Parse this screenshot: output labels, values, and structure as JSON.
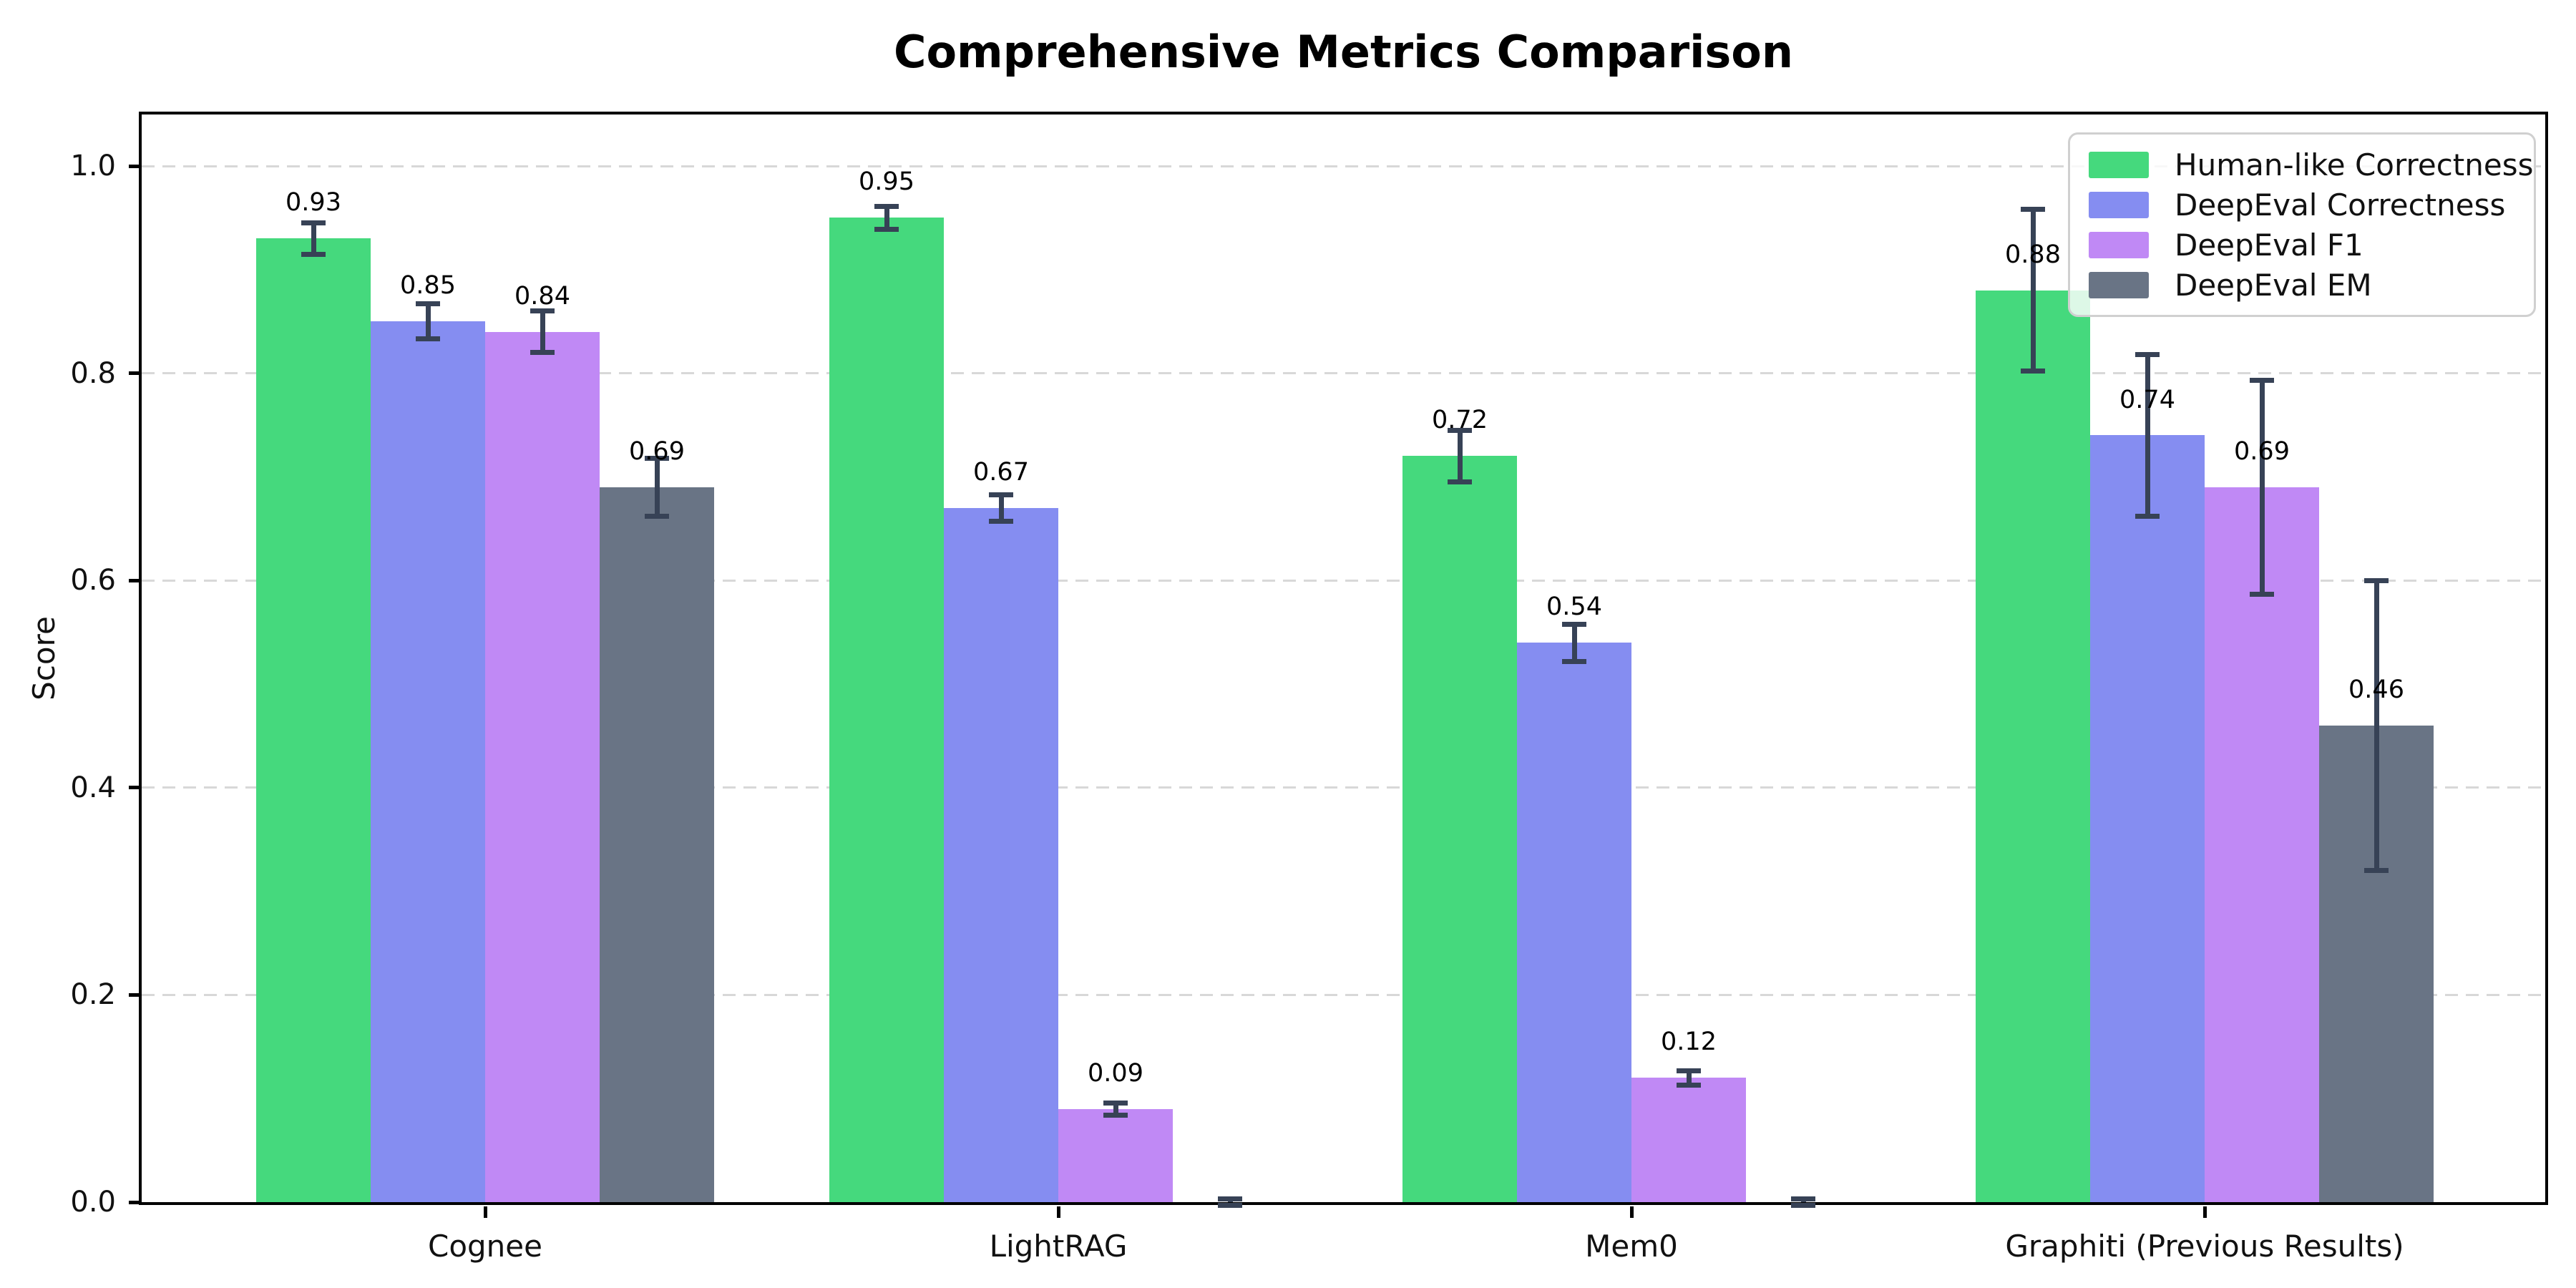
{
  "chart_data": {
    "type": "bar",
    "title": "Comprehensive Metrics Comparison",
    "ylabel": "Score",
    "xlabel": "",
    "categories": [
      "Cognee",
      "LightRAG",
      "Mem0",
      "Graphiti (Previous Results)"
    ],
    "series": [
      {
        "name": "Human-like Correctness",
        "color": "#45d97d",
        "values": [
          0.93,
          0.95,
          0.72,
          0.88
        ],
        "errors": [
          0.015,
          0.011,
          0.025,
          0.078
        ],
        "bar_labels": [
          "0.93",
          "0.95",
          "0.72",
          "0.88"
        ]
      },
      {
        "name": "DeepEval Correctness",
        "color": "#858df1",
        "values": [
          0.85,
          0.67,
          0.54,
          0.74
        ],
        "errors": [
          0.017,
          0.013,
          0.018,
          0.078
        ],
        "bar_labels": [
          "0.85",
          "0.67",
          "0.54",
          "0.74"
        ]
      },
      {
        "name": "DeepEval F1",
        "color": "#c089f5",
        "values": [
          0.84,
          0.09,
          0.12,
          0.69
        ],
        "errors": [
          0.02,
          0.006,
          0.007,
          0.103
        ],
        "bar_labels": [
          "0.84",
          "0.09",
          "0.12",
          "0.69"
        ]
      },
      {
        "name": "DeepEval EM",
        "color": "#697485",
        "values": [
          0.69,
          0.0,
          0.0,
          0.46
        ],
        "errors": [
          0.028,
          0.003,
          0.003,
          0.14
        ],
        "bar_labels": [
          "0.69",
          null,
          null,
          "0.46"
        ]
      }
    ],
    "error_bar_color": "#374256",
    "y_ticks": {
      "values": [
        0.0,
        0.2,
        0.4,
        0.6,
        0.8,
        1.0
      ],
      "labels": [
        "0.0",
        "0.2",
        "0.4",
        "0.6",
        "0.8",
        "1.0"
      ]
    },
    "ylim": [
      0.0,
      1.05
    ],
    "grid": {
      "axis": "y",
      "style": "dashed",
      "color": "#d8d8d8"
    },
    "legend_position": "upper right"
  }
}
